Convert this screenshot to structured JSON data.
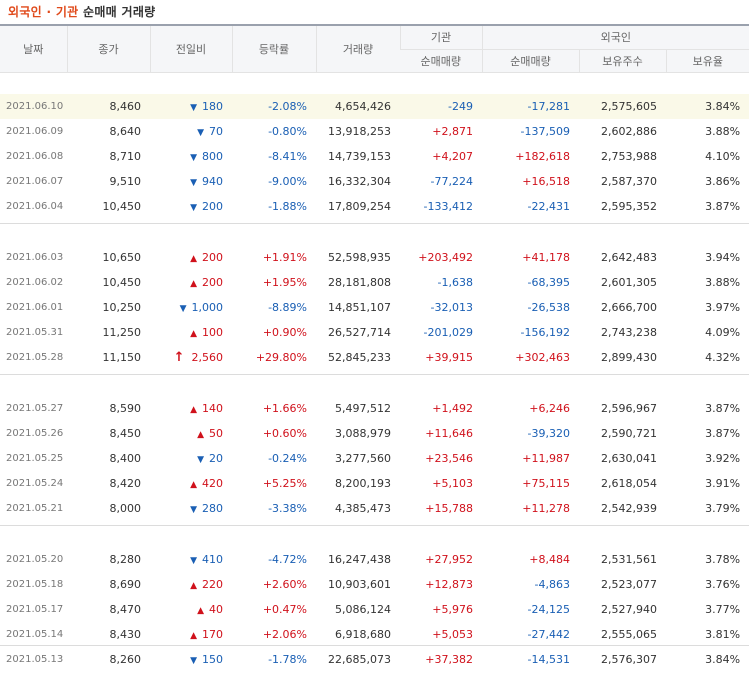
{
  "title": {
    "part1": "외국인 · 기관",
    "part2": " 순매매 거래량"
  },
  "columns": {
    "date": "날짜",
    "close": "종가",
    "change": "전일비",
    "rate": "등락률",
    "volume": "거래량",
    "institution": "기관",
    "foreign": "외국인",
    "inst_net": "순매매량",
    "foreign_net": "순매매량",
    "holdings": "보유주수",
    "holding_rate": "보유율"
  },
  "colors": {
    "up": "#d0111b",
    "down": "#1a5fb4",
    "highlight": "#faf9e8"
  },
  "groups": [
    {
      "rows": [
        {
          "date": "2021.06.10",
          "close": "8,460",
          "dir": "down",
          "change": "180",
          "rate": "-2.08%",
          "volume": "4,654,426",
          "inst": "-249",
          "foreign": "-17,281",
          "holdings": "2,575,605",
          "holding_rate": "3.84%"
        },
        {
          "date": "2021.06.09",
          "close": "8,640",
          "dir": "down",
          "change": "70",
          "rate": "-0.80%",
          "volume": "13,918,253",
          "inst": "+2,871",
          "foreign": "-137,509",
          "holdings": "2,602,886",
          "holding_rate": "3.88%"
        },
        {
          "date": "2021.06.08",
          "close": "8,710",
          "dir": "down",
          "change": "800",
          "rate": "-8.41%",
          "volume": "14,739,153",
          "inst": "+4,207",
          "foreign": "+182,618",
          "holdings": "2,753,988",
          "holding_rate": "4.10%"
        },
        {
          "date": "2021.06.07",
          "close": "9,510",
          "dir": "down",
          "change": "940",
          "rate": "-9.00%",
          "volume": "16,332,304",
          "inst": "-77,224",
          "foreign": "+16,518",
          "holdings": "2,587,370",
          "holding_rate": "3.86%"
        },
        {
          "date": "2021.06.04",
          "close": "10,450",
          "dir": "down",
          "change": "200",
          "rate": "-1.88%",
          "volume": "17,809,254",
          "inst": "-133,412",
          "foreign": "-22,431",
          "holdings": "2,595,352",
          "holding_rate": "3.87%"
        }
      ]
    },
    {
      "rows": [
        {
          "date": "2021.06.03",
          "close": "10,650",
          "dir": "up",
          "change": "200",
          "rate": "+1.91%",
          "volume": "52,598,935",
          "inst": "+203,492",
          "foreign": "+41,178",
          "holdings": "2,642,483",
          "holding_rate": "3.94%"
        },
        {
          "date": "2021.06.02",
          "close": "10,450",
          "dir": "up",
          "change": "200",
          "rate": "+1.95%",
          "volume": "28,181,808",
          "inst": "-1,638",
          "foreign": "-68,395",
          "holdings": "2,601,305",
          "holding_rate": "3.88%"
        },
        {
          "date": "2021.06.01",
          "close": "10,250",
          "dir": "down",
          "change": "1,000",
          "rate": "-8.89%",
          "volume": "14,851,107",
          "inst": "-32,013",
          "foreign": "-26,538",
          "holdings": "2,666,700",
          "holding_rate": "3.97%"
        },
        {
          "date": "2021.05.31",
          "close": "11,250",
          "dir": "up",
          "change": "100",
          "rate": "+0.90%",
          "volume": "26,527,714",
          "inst": "-201,029",
          "foreign": "-156,192",
          "holdings": "2,743,238",
          "holding_rate": "4.09%"
        },
        {
          "date": "2021.05.28",
          "close": "11,150",
          "dir": "limitup",
          "change": "2,560",
          "rate": "+29.80%",
          "volume": "52,845,233",
          "inst": "+39,915",
          "foreign": "+302,463",
          "holdings": "2,899,430",
          "holding_rate": "4.32%"
        }
      ]
    },
    {
      "rows": [
        {
          "date": "2021.05.27",
          "close": "8,590",
          "dir": "up",
          "change": "140",
          "rate": "+1.66%",
          "volume": "5,497,512",
          "inst": "+1,492",
          "foreign": "+6,246",
          "holdings": "2,596,967",
          "holding_rate": "3.87%"
        },
        {
          "date": "2021.05.26",
          "close": "8,450",
          "dir": "up",
          "change": "50",
          "rate": "+0.60%",
          "volume": "3,088,979",
          "inst": "+11,646",
          "foreign": "-39,320",
          "holdings": "2,590,721",
          "holding_rate": "3.87%"
        },
        {
          "date": "2021.05.25",
          "close": "8,400",
          "dir": "down",
          "change": "20",
          "rate": "-0.24%",
          "volume": "3,277,560",
          "inst": "+23,546",
          "foreign": "+11,987",
          "holdings": "2,630,041",
          "holding_rate": "3.92%"
        },
        {
          "date": "2021.05.24",
          "close": "8,420",
          "dir": "up",
          "change": "420",
          "rate": "+5.25%",
          "volume": "8,200,193",
          "inst": "+5,103",
          "foreign": "+75,115",
          "holdings": "2,618,054",
          "holding_rate": "3.91%"
        },
        {
          "date": "2021.05.21",
          "close": "8,000",
          "dir": "down",
          "change": "280",
          "rate": "-3.38%",
          "volume": "4,385,473",
          "inst": "+15,788",
          "foreign": "+11,278",
          "holdings": "2,542,939",
          "holding_rate": "3.79%"
        }
      ]
    },
    {
      "rows": [
        {
          "date": "2021.05.20",
          "close": "8,280",
          "dir": "down",
          "change": "410",
          "rate": "-4.72%",
          "volume": "16,247,438",
          "inst": "+27,952",
          "foreign": "+8,484",
          "holdings": "2,531,561",
          "holding_rate": "3.78%"
        },
        {
          "date": "2021.05.18",
          "close": "8,690",
          "dir": "up",
          "change": "220",
          "rate": "+2.60%",
          "volume": "10,903,601",
          "inst": "+12,873",
          "foreign": "-4,863",
          "holdings": "2,523,077",
          "holding_rate": "3.76%"
        },
        {
          "date": "2021.05.17",
          "close": "8,470",
          "dir": "up",
          "change": "40",
          "rate": "+0.47%",
          "volume": "5,086,124",
          "inst": "+5,976",
          "foreign": "-24,125",
          "holdings": "2,527,940",
          "holding_rate": "3.77%"
        },
        {
          "date": "2021.05.14",
          "close": "8,430",
          "dir": "up",
          "change": "170",
          "rate": "+2.06%",
          "volume": "6,918,680",
          "inst": "+5,053",
          "foreign": "-27,442",
          "holdings": "2,555,065",
          "holding_rate": "3.81%"
        },
        {
          "date": "2021.05.13",
          "close": "8,260",
          "dir": "down",
          "change": "150",
          "rate": "-1.78%",
          "volume": "22,685,073",
          "inst": "+37,382",
          "foreign": "-14,531",
          "holdings": "2,576,307",
          "holding_rate": "3.84%"
        }
      ]
    }
  ]
}
